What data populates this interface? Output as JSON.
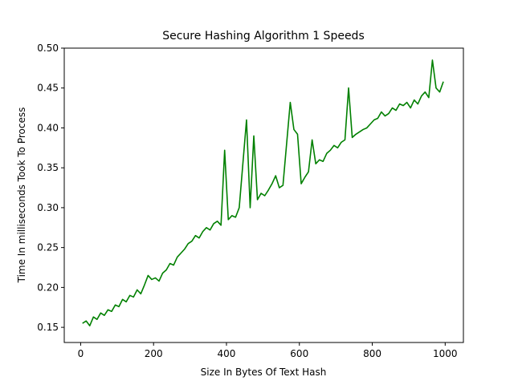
{
  "chart_data": {
    "type": "line",
    "title": "Secure Hashing Algorithm 1 Speeds",
    "xlabel": "Size In Bytes Of Text Hash",
    "ylabel": "Time In milliseconds Took To Process",
    "x": [
      5,
      15,
      25,
      35,
      45,
      55,
      65,
      75,
      85,
      95,
      105,
      115,
      125,
      135,
      145,
      155,
      165,
      175,
      185,
      195,
      205,
      215,
      225,
      235,
      245,
      255,
      265,
      275,
      285,
      295,
      305,
      315,
      325,
      335,
      345,
      355,
      365,
      375,
      385,
      395,
      405,
      415,
      425,
      435,
      445,
      455,
      465,
      475,
      485,
      495,
      505,
      515,
      525,
      535,
      545,
      555,
      565,
      575,
      585,
      595,
      605,
      615,
      625,
      635,
      645,
      655,
      665,
      675,
      685,
      695,
      705,
      715,
      725,
      735,
      745,
      755,
      765,
      775,
      785,
      795,
      805,
      815,
      825,
      835,
      845,
      855,
      865,
      875,
      885,
      895,
      905,
      915,
      925,
      935,
      945,
      955,
      965,
      975,
      985,
      995
    ],
    "series": [
      {
        "color": "#008000",
        "values": [
          0.155,
          0.158,
          0.152,
          0.163,
          0.16,
          0.168,
          0.165,
          0.172,
          0.17,
          0.178,
          0.176,
          0.185,
          0.182,
          0.19,
          0.188,
          0.197,
          0.192,
          0.203,
          0.215,
          0.21,
          0.212,
          0.208,
          0.218,
          0.222,
          0.23,
          0.228,
          0.238,
          0.243,
          0.248,
          0.255,
          0.258,
          0.265,
          0.262,
          0.27,
          0.275,
          0.272,
          0.28,
          0.283,
          0.278,
          0.372,
          0.285,
          0.29,
          0.288,
          0.3,
          0.355,
          0.41,
          0.3,
          0.39,
          0.31,
          0.318,
          0.315,
          0.322,
          0.33,
          0.34,
          0.325,
          0.328,
          0.38,
          0.432,
          0.398,
          0.392,
          0.33,
          0.338,
          0.345,
          0.385,
          0.355,
          0.36,
          0.358,
          0.368,
          0.372,
          0.378,
          0.375,
          0.382,
          0.385,
          0.45,
          0.388,
          0.392,
          0.395,
          0.398,
          0.4,
          0.405,
          0.41,
          0.412,
          0.42,
          0.415,
          0.418,
          0.425,
          0.422,
          0.43,
          0.428,
          0.432,
          0.425,
          0.435,
          0.43,
          0.44,
          0.445,
          0.438,
          0.485,
          0.45,
          0.445,
          0.458
        ]
      }
    ],
    "xlim": [
      -45,
      1050
    ],
    "ylim": [
      0.131,
      0.5
    ],
    "xticks": [
      0,
      200,
      400,
      600,
      800,
      1000
    ],
    "yticks": [
      0.15,
      {
        "value": 0.2,
        "label": "0.20"
      },
      0.25,
      {
        "value": 0.3,
        "label": "0.30"
      },
      0.35,
      {
        "value": 0.4,
        "label": "0.40"
      },
      0.45,
      {
        "value": 0.5,
        "label": "0.50"
      }
    ]
  }
}
